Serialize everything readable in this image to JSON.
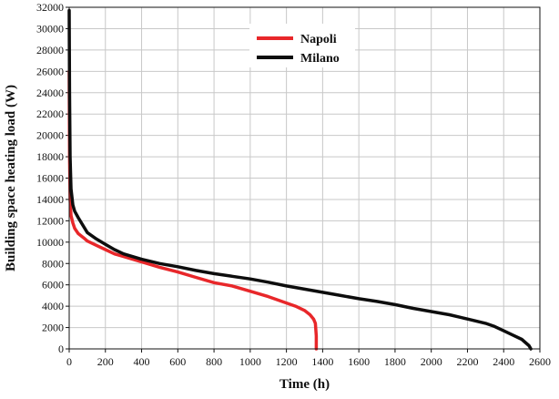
{
  "chart_data": {
    "type": "line",
    "title": "",
    "xlabel": "Time (h)",
    "ylabel": "Building space heating load (W)",
    "xlim": [
      0,
      2600
    ],
    "ylim": [
      0,
      32000
    ],
    "x_ticks": [
      0,
      200,
      400,
      600,
      800,
      1000,
      1200,
      1400,
      1600,
      1800,
      2000,
      2200,
      2400,
      2600
    ],
    "y_ticks": [
      0,
      2000,
      4000,
      6000,
      8000,
      10000,
      12000,
      14000,
      16000,
      18000,
      20000,
      22000,
      24000,
      26000,
      28000,
      30000,
      32000
    ],
    "grid": true,
    "legend_position": "top-center",
    "series": [
      {
        "name": "Napoli",
        "color": "#e8272a",
        "x": [
          0,
          2,
          5,
          10,
          20,
          30,
          50,
          80,
          100,
          150,
          200,
          250,
          300,
          400,
          500,
          600,
          700,
          800,
          900,
          1000,
          1100,
          1200,
          1250,
          1300,
          1330,
          1350,
          1360,
          1365,
          1365
        ],
        "y": [
          26000,
          18000,
          14000,
          12500,
          11800,
          11300,
          10800,
          10400,
          10100,
          9700,
          9300,
          8900,
          8650,
          8150,
          7650,
          7200,
          6700,
          6200,
          5900,
          5400,
          4900,
          4300,
          4000,
          3600,
          3200,
          2800,
          2400,
          1200,
          0
        ]
      },
      {
        "name": "Milano",
        "color": "#0d0d0d",
        "x": [
          0,
          2,
          5,
          10,
          20,
          30,
          50,
          100,
          150,
          200,
          250,
          300,
          400,
          500,
          600,
          700,
          800,
          900,
          1000,
          1100,
          1200,
          1300,
          1400,
          1500,
          1600,
          1700,
          1800,
          1900,
          2000,
          2100,
          2200,
          2300,
          2350,
          2400,
          2450,
          2500,
          2520,
          2540,
          2550
        ],
        "y": [
          31700,
          24000,
          18000,
          15000,
          13500,
          12900,
          12300,
          10900,
          10300,
          9800,
          9300,
          8900,
          8400,
          8000,
          7700,
          7350,
          7050,
          6800,
          6550,
          6250,
          5900,
          5600,
          5300,
          5000,
          4700,
          4450,
          4150,
          3800,
          3500,
          3200,
          2800,
          2400,
          2100,
          1700,
          1300,
          900,
          600,
          300,
          0
        ]
      }
    ]
  }
}
